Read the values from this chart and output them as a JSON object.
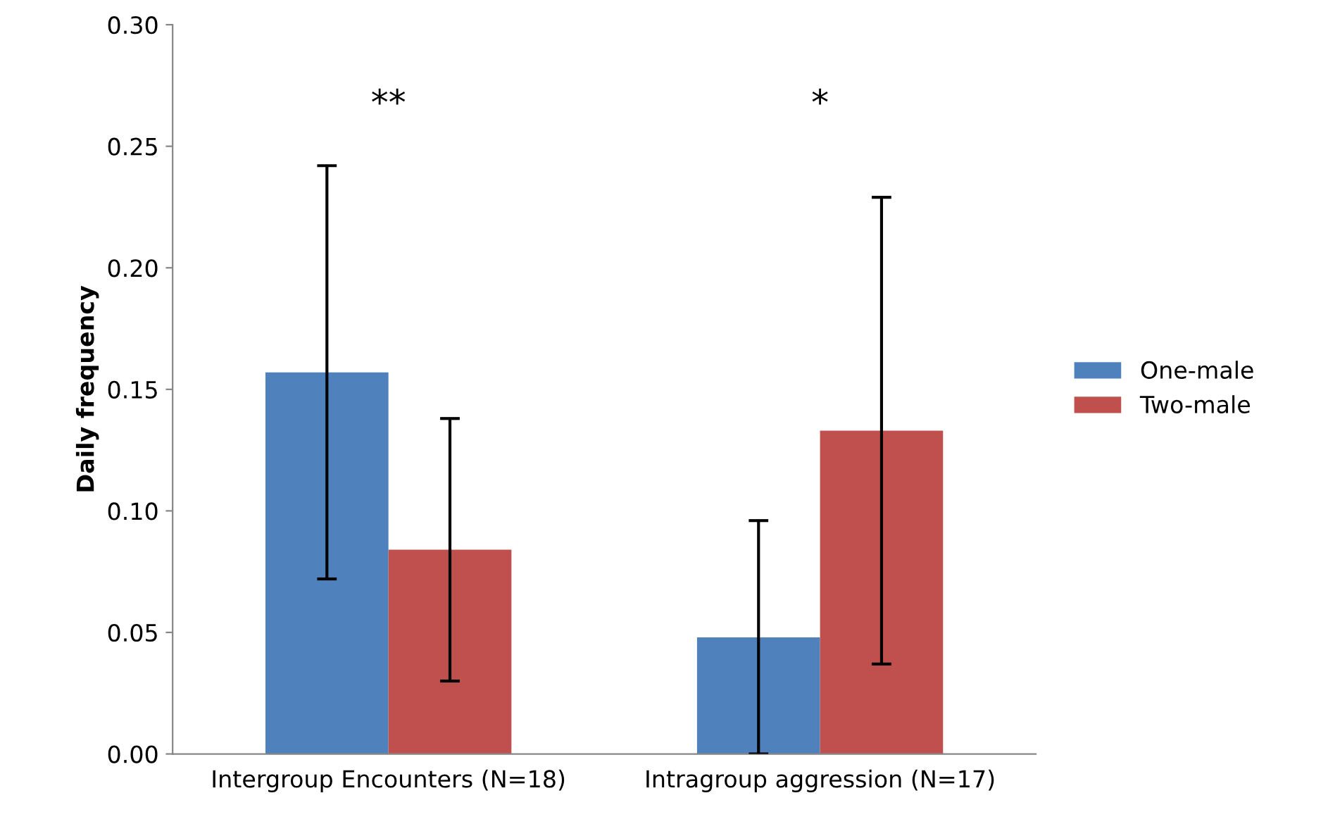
{
  "chart_data": {
    "type": "bar",
    "ylabel": "Daily frequency",
    "categories": [
      "Intergroup Encounters (N=18)",
      "Intragroup aggression (N=17)"
    ],
    "series": [
      {
        "name": "One-male",
        "color": "#4f81bd",
        "values": [
          0.157,
          0.048
        ],
        "errors": [
          0.085,
          0.048
        ]
      },
      {
        "name": "Two-male",
        "color": "#c0504d",
        "values": [
          0.084,
          0.133
        ],
        "errors": [
          0.054,
          0.096
        ]
      }
    ],
    "ylim": [
      0,
      0.3
    ],
    "yticks": [
      {
        "value": 0,
        "label": "0.00"
      },
      {
        "value": 0.05,
        "label": "0.05"
      },
      {
        "value": 0.1,
        "label": "0.10"
      },
      {
        "value": 0.15,
        "label": "0.15"
      },
      {
        "value": 0.2,
        "label": "0.20"
      },
      {
        "value": 0.25,
        "label": "0.25"
      },
      {
        "value": 0.3,
        "label": "0.30"
      }
    ],
    "grid": false,
    "legend": "right",
    "annotations": [
      "**",
      "*"
    ]
  }
}
